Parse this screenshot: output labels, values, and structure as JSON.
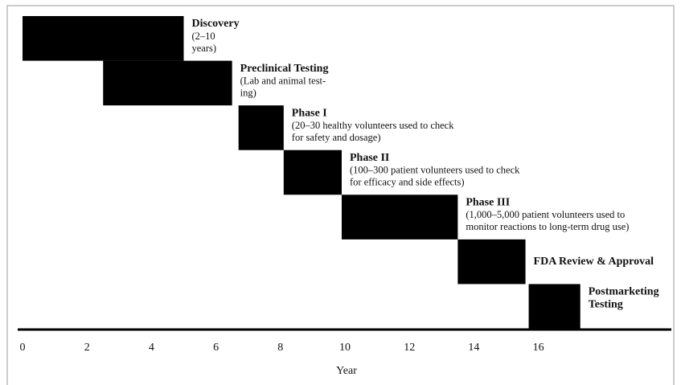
{
  "chart_data": {
    "type": "gantt",
    "color": "#000000",
    "x_label": "Year",
    "xlim": [
      0,
      20
    ],
    "xticks": [
      0,
      2,
      4,
      6,
      8,
      10,
      12,
      14,
      16
    ],
    "tasks": [
      {
        "name": "Discovery",
        "description": [
          "(2–10",
          "years)"
        ],
        "start": 0,
        "end": 5
      },
      {
        "name": "Preclinical Testing",
        "description": [
          "(Lab and animal test-",
          "ing)"
        ],
        "start": 2.5,
        "end": 6.5
      },
      {
        "name": "Phase I",
        "description": [
          "(20–30 healthy volunteers used to check",
          "for safety and dosage)"
        ],
        "start": 6.7,
        "end": 8.1
      },
      {
        "name": "Phase II",
        "description": [
          "(100–300 patient volunteers used to check",
          "for efficacy and side effects)"
        ],
        "start": 8.1,
        "end": 9.9
      },
      {
        "name": "Phase III",
        "description": [
          "(1,000–5,000 patient volunteers used to",
          "monitor reactions to long-term drug use)"
        ],
        "start": 9.9,
        "end": 13.5
      },
      {
        "name": "FDA Review & Approval",
        "description": [],
        "start": 13.5,
        "end": 15.6
      },
      {
        "name": "Postmarketing",
        "description": [
          "Testing"
        ],
        "start": 15.7,
        "end": 17.3
      }
    ]
  }
}
